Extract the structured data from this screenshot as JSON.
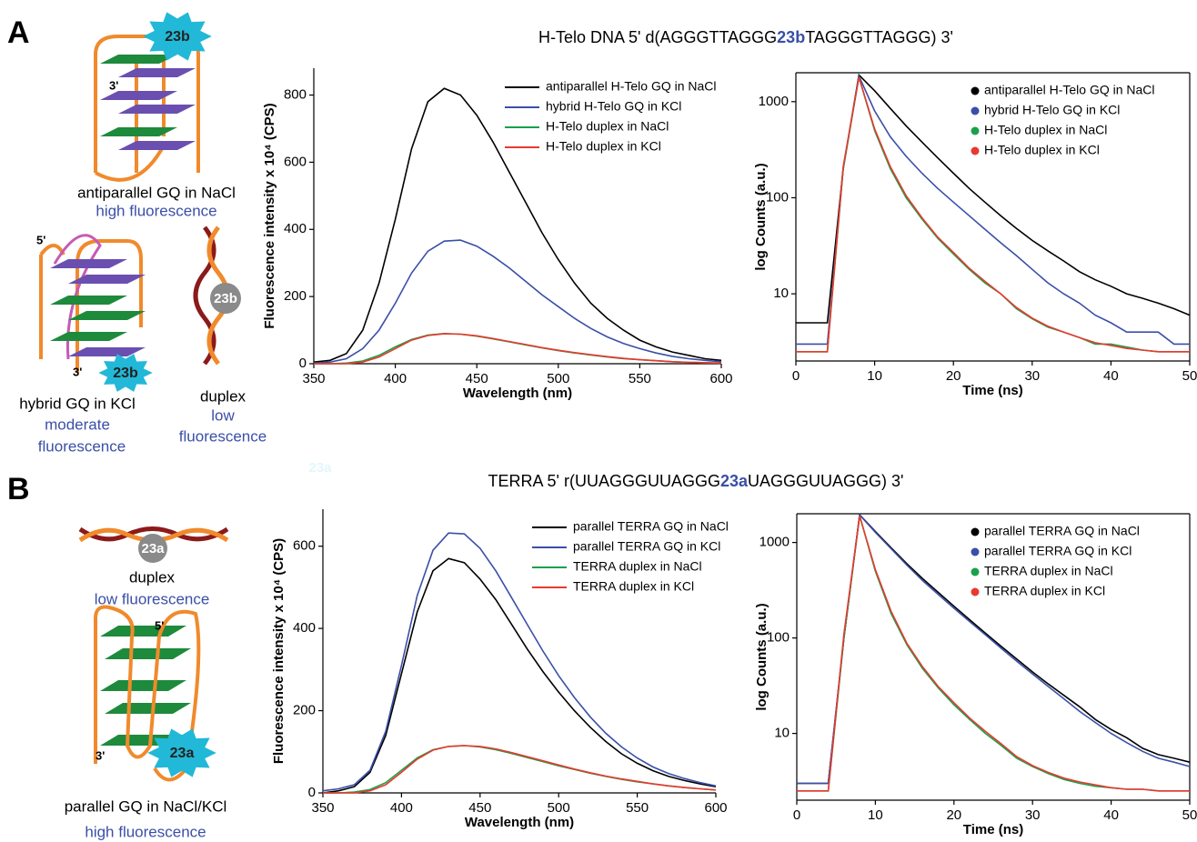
{
  "panel_a": {
    "letter": "A",
    "title_parts": [
      "H-Telo DNA  5' d(AGGGTTAGGG",
      "23b",
      "TAGGGTTAGGG) 3'"
    ],
    "diagram_labels": [
      "23b",
      "3'",
      "antiparallel GQ in NaCl",
      "high fluorescence",
      "5'",
      "3'",
      "23b",
      "hybrid GQ in KCl",
      "moderate",
      "fluorescence",
      "23b",
      "duplex",
      "low",
      "fluorescence",
      "23a"
    ]
  },
  "panel_b": {
    "letter": "B",
    "title_parts": [
      "TERRA  5' r(UUAGGGUUAGGG",
      "23a",
      "UAGGGUUAGGG) 3'"
    ],
    "diagram_labels": [
      "23a",
      "duplex",
      "low fluorescence",
      "5'",
      "3'",
      "23a",
      "parallel GQ in NaCl/KCl",
      "high fluorescence"
    ]
  },
  "chart_data": [
    {
      "type": "line",
      "frame": "open",
      "legend_marker": "line",
      "log_y": false,
      "x_label": "Wavelength (nm)",
      "y_label": "Fluorescence intensity x 10⁴ (CPS)",
      "xlim": [
        350,
        600
      ],
      "ylim": [
        0,
        880
      ],
      "xticks": [
        350,
        400,
        450,
        500,
        550,
        600
      ],
      "yticks": [
        0,
        200,
        400,
        600,
        800
      ],
      "x": [
        350,
        360,
        370,
        380,
        390,
        400,
        410,
        420,
        430,
        440,
        450,
        460,
        470,
        480,
        490,
        500,
        510,
        520,
        530,
        540,
        550,
        560,
        570,
        580,
        590,
        600
      ],
      "series": [
        {
          "name": "antiparallel H-Telo GQ in NaCl",
          "color": "#000000",
          "values": [
            5,
            10,
            30,
            100,
            240,
            430,
            640,
            780,
            820,
            800,
            740,
            660,
            570,
            480,
            390,
            310,
            240,
            180,
            135,
            100,
            70,
            50,
            35,
            25,
            15,
            10
          ]
        },
        {
          "name": "hybrid H-Telo GQ in KCl",
          "color": "#3a4fa8",
          "values": [
            2,
            5,
            15,
            45,
            100,
            180,
            270,
            335,
            365,
            368,
            350,
            320,
            285,
            245,
            205,
            170,
            135,
            105,
            80,
            60,
            45,
            32,
            22,
            15,
            10,
            6
          ]
        },
        {
          "name": "H-Telo duplex in NaCl",
          "color": "#1aa04a",
          "values": [
            0,
            0,
            2,
            8,
            25,
            50,
            72,
            85,
            90,
            88,
            82,
            74,
            65,
            56,
            47,
            39,
            32,
            26,
            20,
            15,
            12,
            9,
            6,
            4,
            3,
            2
          ]
        },
        {
          "name": "H-Telo duplex in KCl",
          "color": "#e8392f",
          "values": [
            0,
            0,
            0,
            5,
            20,
            45,
            70,
            84,
            89,
            88,
            83,
            75,
            66,
            57,
            48,
            40,
            33,
            27,
            21,
            16,
            12,
            9,
            6,
            4,
            3,
            2
          ]
        }
      ]
    },
    {
      "type": "line",
      "frame": "box",
      "legend_marker": "dot",
      "log_y": true,
      "x_label": "Time (ns)",
      "y_label": "log Counts (a.u.)",
      "xlim": [
        0,
        50
      ],
      "ylim": [
        2,
        2000
      ],
      "xticks": [
        0,
        10,
        20,
        30,
        40,
        50
      ],
      "yticks": [
        10,
        100,
        1000
      ],
      "x": [
        0,
        2,
        4,
        6,
        8,
        10,
        12,
        14,
        16,
        18,
        20,
        22,
        24,
        26,
        28,
        30,
        32,
        34,
        36,
        38,
        40,
        42,
        44,
        46,
        48,
        50
      ],
      "series": [
        {
          "name": "antiparallel H-Telo GQ in NaCl",
          "color": "#000000",
          "values": [
            5,
            5,
            5,
            200,
            1900,
            1300,
            850,
            560,
            380,
            260,
            180,
            125,
            90,
            65,
            48,
            36,
            28,
            22,
            17,
            14,
            12,
            10,
            9,
            8,
            7,
            6
          ]
        },
        {
          "name": "hybrid H-Telo GQ in KCl",
          "color": "#3a4fa8",
          "values": [
            3,
            3,
            3,
            200,
            1850,
            800,
            430,
            270,
            180,
            125,
            90,
            65,
            47,
            34,
            25,
            18,
            13,
            10,
            8,
            6,
            5,
            4,
            4,
            4,
            3,
            3
          ]
        },
        {
          "name": "H-Telo duplex in NaCl",
          "color": "#1aa04a",
          "values": [
            2.5,
            2.5,
            2.5,
            200,
            1800,
            500,
            200,
            100,
            60,
            38,
            26,
            18,
            13,
            10,
            7,
            5.5,
            4.5,
            4,
            3.5,
            3,
            3,
            2.8,
            2.6,
            2.5,
            2.5,
            2.5
          ]
        },
        {
          "name": "H-Telo duplex in KCl",
          "color": "#e8392f",
          "values": [
            2.5,
            2.5,
            2.5,
            210,
            1800,
            520,
            210,
            105,
            62,
            39,
            27,
            18.5,
            13.5,
            10,
            7.2,
            5.6,
            4.6,
            4,
            3.5,
            3.1,
            2.9,
            2.7,
            2.6,
            2.5,
            2.5,
            2.5
          ]
        }
      ]
    },
    {
      "type": "line",
      "frame": "open",
      "legend_marker": "line",
      "log_y": false,
      "x_label": "Wavelength (nm)",
      "y_label": "Fluorescence intensity x 10⁴ (CPS)",
      "xlim": [
        350,
        600
      ],
      "ylim": [
        0,
        690
      ],
      "xticks": [
        350,
        400,
        450,
        500,
        550,
        600
      ],
      "yticks": [
        0,
        200,
        400,
        600
      ],
      "x": [
        350,
        360,
        370,
        380,
        390,
        400,
        410,
        420,
        430,
        440,
        450,
        460,
        470,
        480,
        490,
        500,
        510,
        520,
        530,
        540,
        550,
        560,
        570,
        580,
        590,
        600
      ],
      "series": [
        {
          "name": "parallel TERRA GQ in NaCl",
          "color": "#000000",
          "values": [
            0,
            5,
            15,
            50,
            140,
            290,
            440,
            540,
            570,
            560,
            520,
            470,
            410,
            350,
            295,
            245,
            200,
            160,
            125,
            95,
            72,
            54,
            40,
            30,
            22,
            15
          ]
        },
        {
          "name": "parallel TERRA GQ in KCl",
          "color": "#3a4fa8",
          "values": [
            5,
            10,
            20,
            55,
            150,
            310,
            480,
            590,
            632,
            630,
            595,
            540,
            475,
            410,
            345,
            285,
            232,
            185,
            145,
            112,
            85,
            63,
            47,
            35,
            25,
            17
          ]
        },
        {
          "name": "TERRA duplex in NaCl",
          "color": "#1aa04a",
          "values": [
            0,
            0,
            2,
            8,
            25,
            55,
            85,
            105,
            113,
            115,
            112,
            105,
            96,
            86,
            76,
            66,
            57,
            48,
            40,
            33,
            27,
            22,
            17,
            13,
            10,
            7
          ]
        },
        {
          "name": "TERRA duplex in KCl",
          "color": "#e8392f",
          "values": [
            0,
            0,
            0,
            5,
            20,
            50,
            82,
            104,
            113,
            115,
            113,
            107,
            98,
            88,
            78,
            68,
            58,
            49,
            41,
            34,
            28,
            22,
            17,
            13,
            10,
            7
          ]
        }
      ]
    },
    {
      "type": "line",
      "frame": "box",
      "legend_marker": "dot",
      "log_y": true,
      "x_label": "Time (ns)",
      "y_label": "log Counts (a.u.)",
      "xlim": [
        0,
        50
      ],
      "ylim": [
        2,
        2000
      ],
      "xticks": [
        0,
        10,
        20,
        30,
        40,
        50
      ],
      "yticks": [
        10,
        100,
        1000
      ],
      "x": [
        0,
        2,
        4,
        6,
        8,
        10,
        12,
        14,
        16,
        18,
        20,
        22,
        24,
        26,
        28,
        30,
        32,
        34,
        36,
        38,
        40,
        42,
        44,
        46,
        48,
        50
      ],
      "series": [
        {
          "name": "parallel TERRA GQ in NaCl",
          "color": "#000000",
          "values": [
            3,
            3,
            3,
            100,
            1950,
            1300,
            880,
            600,
            420,
            300,
            215,
            155,
            112,
            82,
            60,
            44,
            33,
            25,
            19,
            14,
            11,
            9,
            7,
            6,
            5.5,
            5
          ]
        },
        {
          "name": "parallel TERRA GQ in KCl",
          "color": "#3a4fa8",
          "values": [
            3,
            3,
            3,
            100,
            1950,
            1280,
            860,
            580,
            400,
            285,
            205,
            148,
            108,
            78,
            57,
            42,
            31,
            23,
            17,
            13,
            10,
            8,
            6.5,
            5.5,
            5,
            4.5
          ]
        },
        {
          "name": "TERRA duplex in NaCl",
          "color": "#1aa04a",
          "values": [
            2.5,
            2.5,
            2.5,
            100,
            1900,
            500,
            180,
            85,
            48,
            30,
            20,
            14,
            10,
            7.5,
            5.5,
            4.5,
            3.8,
            3.3,
            3,
            2.8,
            2.7,
            2.6,
            2.6,
            2.5,
            2.5,
            2.5
          ]
        },
        {
          "name": "TERRA duplex in KCl",
          "color": "#e8392f",
          "values": [
            2.5,
            2.5,
            2.5,
            110,
            1900,
            520,
            190,
            88,
            50,
            31,
            21,
            14.5,
            10.5,
            7.8,
            5.7,
            4.6,
            3.9,
            3.4,
            3.1,
            2.9,
            2.7,
            2.6,
            2.6,
            2.5,
            2.5,
            2.5
          ]
        }
      ]
    }
  ]
}
